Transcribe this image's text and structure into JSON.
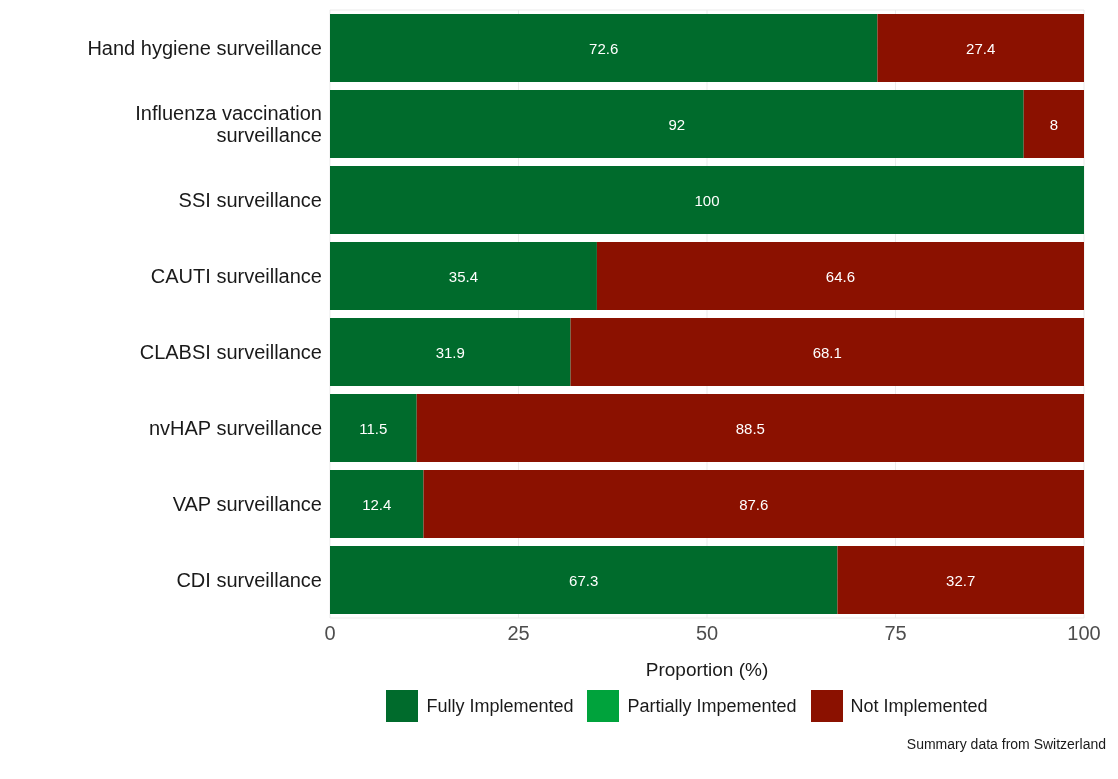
{
  "chart_data": {
    "type": "bar",
    "orientation": "horizontal",
    "stacked": true,
    "xlabel": "Proportion (%)",
    "categories": [
      "Hand hygiene surveillance",
      "Influenza vaccination surveillance",
      "SSI surveillance",
      "CAUTI surveillance",
      "CLABSI surveillance",
      "nvHAP surveillance",
      "VAP surveillance",
      "CDI surveillance"
    ],
    "series": [
      {
        "name": "Fully Implemented",
        "color": "#006b2c",
        "values": [
          72.6,
          92,
          100,
          35.4,
          31.9,
          11.5,
          12.4,
          67.3
        ],
        "value_labels": [
          "72.6",
          "92",
          "100",
          "35.4",
          "31.9",
          "11.5",
          "12.4",
          "67.3"
        ]
      },
      {
        "name": "Partially Impemented",
        "color": "#00a33c",
        "values": [
          0,
          0,
          0,
          0,
          0,
          0,
          0,
          0
        ]
      },
      {
        "name": "Not Implemented",
        "color": "#8b1100",
        "values": [
          27.4,
          8,
          0,
          64.6,
          68.1,
          88.5,
          87.6,
          32.7
        ],
        "value_labels": [
          "27.4",
          "8",
          null,
          "64.6",
          "68.1",
          "88.5",
          "87.6",
          "32.7"
        ]
      }
    ],
    "xlim": [
      0,
      100
    ],
    "xticks": [
      0,
      25,
      50,
      75,
      100
    ],
    "grid": true,
    "legend": "bottom",
    "annotations": [
      "Summary data from Switzerland"
    ]
  }
}
